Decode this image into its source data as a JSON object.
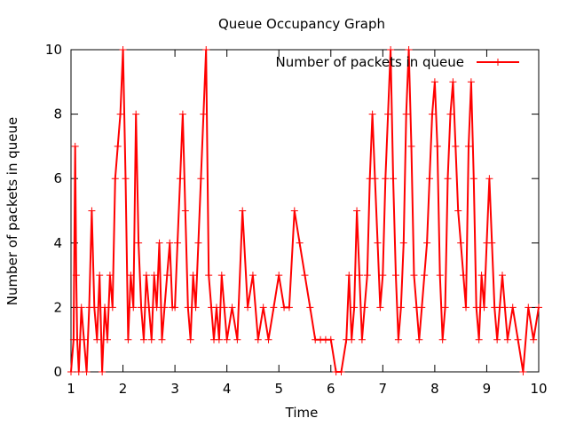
{
  "chart_data": {
    "type": "line",
    "title": "Queue Occupancy Graph",
    "xlabel": "Time",
    "ylabel": "Number of packets in queue",
    "xlim": [
      1,
      10
    ],
    "ylim": [
      0,
      10
    ],
    "xticks": [
      "1",
      "2",
      "3",
      "4",
      "5",
      "6",
      "7",
      "8",
      "9",
      "10"
    ],
    "yticks": [
      "0",
      "2",
      "4",
      "6",
      "8",
      "10"
    ],
    "legend_position": "top-right",
    "grid": false,
    "point_marker": "plus",
    "series": [
      {
        "name": "Number of packets in queue",
        "color": "#ff0000",
        "x": [
          1.0,
          1.05,
          1.08,
          1.1,
          1.12,
          1.15,
          1.2,
          1.25,
          1.3,
          1.35,
          1.4,
          1.45,
          1.5,
          1.55,
          1.6,
          1.65,
          1.7,
          1.75,
          1.8,
          1.85,
          1.9,
          1.95,
          2.0,
          2.05,
          2.1,
          2.15,
          2.2,
          2.25,
          2.3,
          2.35,
          2.4,
          2.45,
          2.5,
          2.55,
          2.6,
          2.65,
          2.7,
          2.75,
          2.8,
          2.85,
          2.9,
          2.95,
          3.0,
          3.05,
          3.1,
          3.15,
          3.2,
          3.25,
          3.3,
          3.35,
          3.4,
          3.45,
          3.5,
          3.55,
          3.6,
          3.65,
          3.7,
          3.75,
          3.8,
          3.85,
          3.9,
          3.95,
          4.0,
          4.1,
          4.2,
          4.3,
          4.4,
          4.5,
          4.6,
          4.7,
          4.8,
          4.9,
          5.0,
          5.1,
          5.2,
          5.3,
          5.4,
          5.5,
          5.6,
          5.7,
          5.8,
          5.9,
          6.0,
          6.1,
          6.2,
          6.3,
          6.35,
          6.4,
          6.45,
          6.5,
          6.55,
          6.6,
          6.65,
          6.7,
          6.75,
          6.8,
          6.85,
          6.9,
          6.95,
          7.0,
          7.05,
          7.1,
          7.15,
          7.2,
          7.25,
          7.3,
          7.35,
          7.4,
          7.45,
          7.5,
          7.55,
          7.6,
          7.65,
          7.7,
          7.75,
          7.8,
          7.85,
          7.9,
          7.95,
          8.0,
          8.05,
          8.1,
          8.15,
          8.2,
          8.25,
          8.3,
          8.35,
          8.4,
          8.45,
          8.5,
          8.55,
          8.6,
          8.65,
          8.7,
          8.75,
          8.8,
          8.85,
          8.9,
          8.95,
          9.0,
          9.05,
          9.1,
          9.15,
          9.2,
          9.25,
          9.3,
          9.35,
          9.4,
          9.5,
          9.6,
          9.7,
          9.8,
          9.9,
          10.0
        ],
        "y": [
          0,
          1,
          7,
          3,
          1,
          0,
          2,
          1,
          0,
          2,
          5,
          2,
          1,
          3,
          0,
          2,
          1,
          3,
          2,
          6,
          7,
          8,
          10,
          6,
          1,
          3,
          2,
          8,
          4,
          2,
          1,
          3,
          2,
          1,
          3,
          2,
          4,
          1,
          2,
          3,
          4,
          2,
          2,
          4,
          6,
          8,
          5,
          2,
          1,
          3,
          2,
          4,
          6,
          8,
          10,
          3,
          2,
          1,
          2,
          1,
          3,
          2,
          1,
          2,
          1,
          5,
          2,
          3,
          1,
          2,
          1,
          2,
          3,
          2,
          2,
          5,
          4,
          3,
          2,
          1,
          1,
          1,
          1,
          0,
          0,
          1,
          3,
          1,
          2,
          5,
          3,
          1,
          2,
          3,
          6,
          8,
          6,
          4,
          2,
          3,
          6,
          8,
          10,
          6,
          3,
          1,
          2,
          4,
          8,
          10,
          7,
          3,
          2,
          1,
          2,
          3,
          4,
          6,
          8,
          9,
          7,
          3,
          1,
          2,
          6,
          8,
          9,
          7,
          5,
          4,
          3,
          2,
          7,
          9,
          6,
          2,
          1,
          3,
          2,
          4,
          6,
          4,
          2,
          1,
          2,
          3,
          2,
          1,
          2,
          1,
          0,
          2,
          1,
          2
        ]
      }
    ]
  }
}
